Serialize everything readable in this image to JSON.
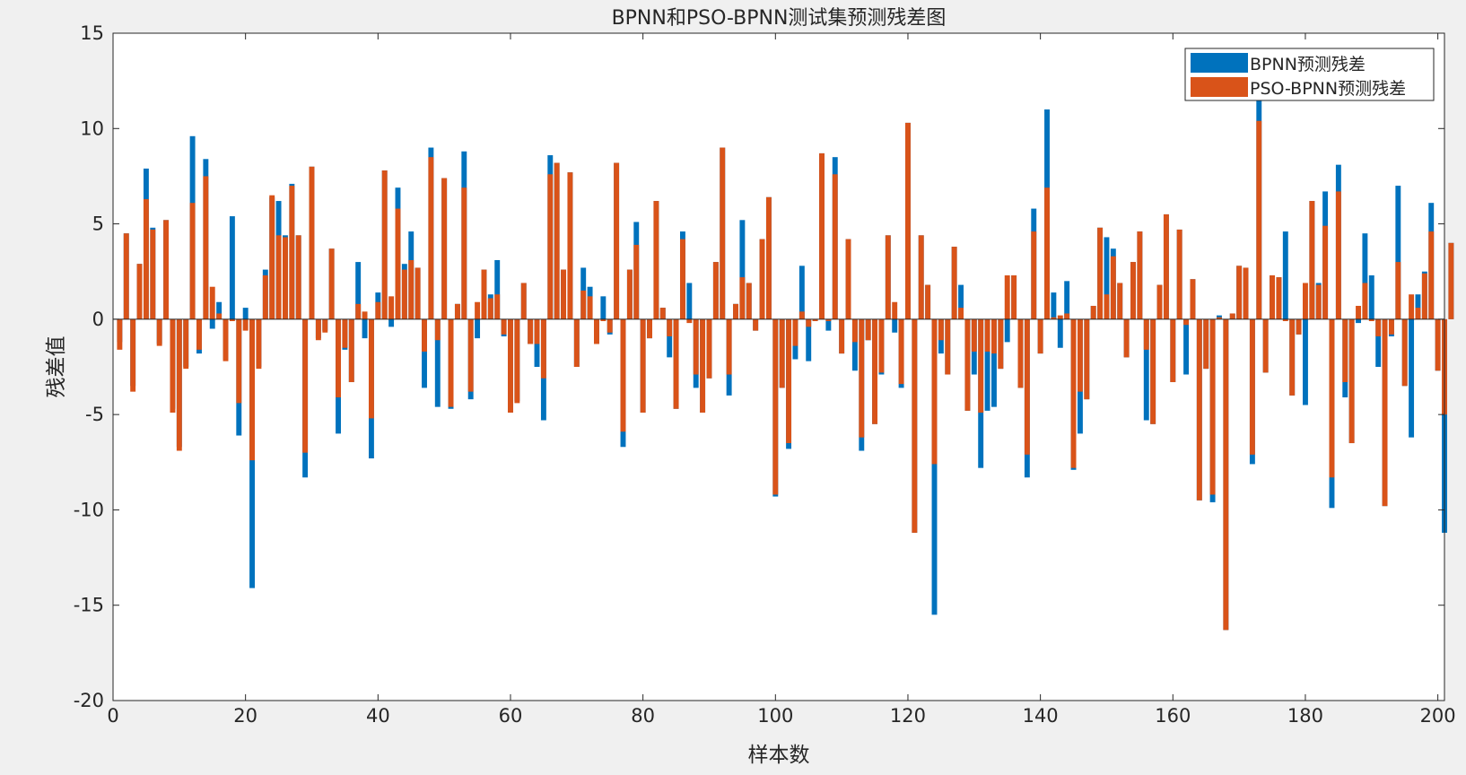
{
  "figure": {
    "background": "#f0f0f0",
    "axes_background": "#ffffff"
  },
  "chart_data": {
    "type": "bar",
    "title": "BPNN和PSO-BPNN测试集预测残差图",
    "xlabel": "样本数",
    "ylabel": "残差值",
    "xlim": [
      0,
      201
    ],
    "ylim": [
      -20,
      15
    ],
    "xticks": [
      0,
      20,
      40,
      60,
      80,
      100,
      120,
      140,
      160,
      180,
      200
    ],
    "yticks": [
      -20,
      -15,
      -10,
      -5,
      0,
      5,
      10,
      15
    ],
    "grid": false,
    "legend_location": "top-right",
    "series": [
      {
        "name": "BPNN预测残差",
        "color": "#0072bd",
        "values": [
          -1.2,
          4.5,
          -3.5,
          2.9,
          7.9,
          4.8,
          -1.3,
          5.2,
          -4.7,
          -6.7,
          -2.5,
          9.6,
          -1.8,
          8.4,
          -0.5,
          0.9,
          -2.1,
          5.4,
          -6.1,
          0.6,
          -14.1,
          -2.5,
          2.6,
          6.4,
          6.2,
          4.4,
          7.1,
          4.4,
          -8.3,
          8.0,
          -1.0,
          -0.6,
          3.7,
          -6.0,
          -1.6,
          -3.3,
          3.0,
          -1.0,
          -7.3,
          1.4,
          7.8,
          -0.4,
          6.9,
          2.9,
          4.6,
          2.7,
          -3.6,
          9.0,
          -4.6,
          7.4,
          -4.7,
          0.8,
          8.8,
          -4.2,
          -1.0,
          2.6,
          1.3,
          3.1,
          -0.9,
          -4.9,
          -4.3,
          1.9,
          -1.3,
          -2.5,
          -5.3,
          8.6,
          8.2,
          2.6,
          7.7,
          -2.5,
          2.7,
          1.7,
          -1.3,
          1.2,
          -0.8,
          8.2,
          -6.7,
          2.6,
          5.1,
          -4.9,
          -1.0,
          6.2,
          0.6,
          -2.0,
          -4.7,
          4.6,
          1.9,
          -3.6,
          -4.9,
          -3.1,
          3.0,
          9.0,
          -4.0,
          0.8,
          5.2,
          1.9,
          -0.6,
          4.2,
          6.4,
          -9.3,
          -3.6,
          -6.8,
          -2.1,
          2.8,
          -2.2,
          -0.1,
          8.7,
          -0.6,
          8.5,
          -1.8,
          4.2,
          -2.7,
          -6.9,
          -1.1,
          -5.5,
          -2.9,
          4.4,
          -0.7,
          -3.6,
          10.3,
          -11.2,
          4.4,
          1.8,
          -15.5,
          -1.8,
          -2.9,
          3.8,
          1.8,
          -4.8,
          -2.9,
          -7.8,
          -4.8,
          -4.6,
          -2.6,
          -1.2,
          2.3,
          -3.6,
          -8.3,
          5.8,
          -1.8,
          11.0,
          1.4,
          -1.5,
          2.0,
          -7.9,
          -6.0,
          -4.2,
          0.7,
          4.8,
          4.3,
          3.7,
          1.9,
          -2.0,
          3.0,
          4.6,
          -5.3,
          -5.5,
          1.8,
          5.5,
          -3.3,
          4.7,
          -2.9,
          2.1,
          -9.5,
          -2.6,
          -9.6,
          0.2,
          -16.3,
          0.3,
          2.8,
          2.7,
          -7.6,
          11.6,
          -2.8,
          2.3,
          2.2,
          4.6,
          -4.0,
          -0.8,
          -4.5,
          6.2,
          1.9,
          6.7,
          -9.9,
          8.1,
          -4.1,
          -6.5,
          -0.2,
          4.5,
          2.3,
          -2.5,
          -9.8,
          -0.9,
          7.0,
          -3.5,
          -6.2,
          1.3,
          2.5,
          6.1,
          -2.7,
          -11.2,
          4.0
        ]
      },
      {
        "name": "PSO-BPNN预测残差",
        "color": "#d95319",
        "values": [
          -1.6,
          4.5,
          -3.8,
          2.9,
          6.3,
          4.7,
          -1.4,
          5.2,
          -4.9,
          -6.9,
          -2.6,
          6.1,
          -1.6,
          7.5,
          1.7,
          0.3,
          -2.2,
          -0.1,
          -4.4,
          -0.6,
          -7.4,
          -2.6,
          2.3,
          6.5,
          4.4,
          4.3,
          7.0,
          4.4,
          -7.0,
          8.0,
          -1.1,
          -0.7,
          3.7,
          -4.1,
          -1.5,
          -3.3,
          0.8,
          0.4,
          -5.2,
          0.9,
          7.8,
          1.2,
          5.8,
          2.6,
          3.1,
          2.7,
          -1.7,
          8.5,
          -1.1,
          7.4,
          -4.6,
          0.8,
          6.9,
          -3.8,
          0.9,
          2.6,
          1.1,
          1.3,
          -0.8,
          -4.9,
          -4.4,
          1.9,
          -1.3,
          -1.3,
          -3.1,
          7.6,
          8.2,
          2.6,
          7.7,
          -2.5,
          1.5,
          1.2,
          -1.3,
          -0.1,
          -0.7,
          8.2,
          -5.9,
          2.6,
          3.9,
          -4.9,
          -1.0,
          6.2,
          0.6,
          -0.9,
          -4.7,
          4.2,
          -0.2,
          -2.9,
          -4.9,
          -3.1,
          3.0,
          9.0,
          -2.9,
          0.8,
          2.2,
          1.9,
          -0.6,
          4.2,
          6.4,
          -9.2,
          -3.6,
          -6.5,
          -1.4,
          0.4,
          -0.4,
          -0.1,
          8.7,
          -0.1,
          7.6,
          -1.8,
          4.2,
          -1.2,
          -6.2,
          -1.1,
          -5.5,
          -2.8,
          4.4,
          0.9,
          -3.4,
          10.3,
          -11.2,
          4.4,
          1.8,
          -7.6,
          -1.1,
          -2.9,
          3.8,
          0.6,
          -4.8,
          -1.7,
          -4.9,
          -1.7,
          -1.8,
          -2.6,
          2.3,
          2.3,
          -3.6,
          -7.1,
          4.6,
          -1.8,
          6.9,
          0.1,
          0.2,
          0.3,
          -7.8,
          -3.8,
          -4.2,
          0.7,
          4.8,
          1.3,
          3.3,
          1.9,
          -2.0,
          3.0,
          4.6,
          -1.6,
          -5.5,
          1.8,
          5.5,
          -3.3,
          4.7,
          -0.3,
          2.1,
          -9.5,
          -2.6,
          -9.2,
          0.1,
          -16.3,
          0.3,
          2.8,
          2.7,
          -7.1,
          10.4,
          -2.8,
          2.3,
          2.2,
          -0.1,
          -4.0,
          -0.8,
          1.9,
          6.2,
          1.8,
          4.9,
          -8.3,
          6.7,
          -3.3,
          -6.5,
          0.7,
          1.9,
          -0.1,
          -0.9,
          -9.8,
          -0.8,
          3.0,
          -3.5,
          1.3,
          0.6,
          2.4,
          4.6,
          -2.7,
          -5.0,
          4.0
        ]
      }
    ]
  }
}
